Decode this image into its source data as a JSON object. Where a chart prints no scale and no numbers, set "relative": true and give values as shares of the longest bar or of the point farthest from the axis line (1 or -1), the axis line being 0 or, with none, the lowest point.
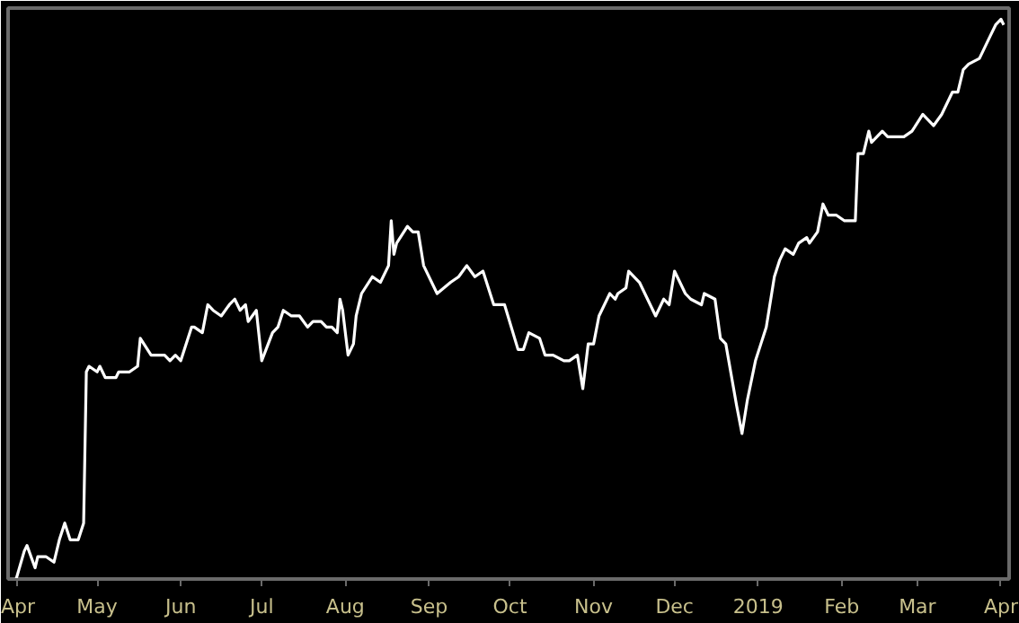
{
  "chart_data": {
    "type": "line",
    "relative": true,
    "grid": false,
    "xlim": [
      "2018-03-29",
      "2019-04-04"
    ],
    "xticks": [
      {
        "value": "2018-04-01",
        "label": "Apr"
      },
      {
        "value": "2018-05-01",
        "label": "May"
      },
      {
        "value": "2018-06-01",
        "label": "Jun"
      },
      {
        "value": "2018-07-01",
        "label": "Jul"
      },
      {
        "value": "2018-08-01",
        "label": "Aug"
      },
      {
        "value": "2018-09-01",
        "label": "Sep"
      },
      {
        "value": "2018-10-01",
        "label": "Oct"
      },
      {
        "value": "2018-11-01",
        "label": "Nov"
      },
      {
        "value": "2018-12-01",
        "label": "Dec"
      },
      {
        "value": "2019-01-01",
        "label": "2019"
      },
      {
        "value": "2019-02-01",
        "label": "Feb"
      },
      {
        "value": "2019-03-01",
        "label": "Mar"
      },
      {
        "value": "2019-04-01",
        "label": "Apr"
      }
    ],
    "x": [
      "2018-04-01",
      "2018-04-04",
      "2018-04-05",
      "2018-04-08",
      "2018-04-09",
      "2018-04-12",
      "2018-04-15",
      "2018-04-17",
      "2018-04-19",
      "2018-04-21",
      "2018-04-24",
      "2018-04-26",
      "2018-04-27",
      "2018-04-28",
      "2018-05-01",
      "2018-05-02",
      "2018-05-04",
      "2018-05-08",
      "2018-05-09",
      "2018-05-13",
      "2018-05-16",
      "2018-05-17",
      "2018-05-21",
      "2018-05-24",
      "2018-05-26",
      "2018-05-28",
      "2018-05-30",
      "2018-06-01",
      "2018-06-05",
      "2018-06-06",
      "2018-06-09",
      "2018-06-11",
      "2018-06-13",
      "2018-06-16",
      "2018-06-19",
      "2018-06-21",
      "2018-06-23",
      "2018-06-25",
      "2018-06-26",
      "2018-06-29",
      "2018-07-01",
      "2018-07-05",
      "2018-07-07",
      "2018-07-09",
      "2018-07-12",
      "2018-07-15",
      "2018-07-18",
      "2018-07-20",
      "2018-07-23",
      "2018-07-25",
      "2018-07-27",
      "2018-07-29",
      "2018-07-30",
      "2018-07-31",
      "2018-08-02",
      "2018-08-04",
      "2018-08-05",
      "2018-08-07",
      "2018-08-11",
      "2018-08-14",
      "2018-08-17",
      "2018-08-18",
      "2018-08-19",
      "2018-08-20",
      "2018-08-24",
      "2018-08-26",
      "2018-08-28",
      "2018-08-30",
      "2018-09-04",
      "2018-09-09",
      "2018-09-12",
      "2018-09-15",
      "2018-09-18",
      "2018-09-21",
      "2018-09-25",
      "2018-09-29",
      "2018-10-04",
      "2018-10-06",
      "2018-10-08",
      "2018-10-12",
      "2018-10-14",
      "2018-10-17",
      "2018-10-21",
      "2018-10-23",
      "2018-10-26",
      "2018-10-28",
      "2018-10-30",
      "2018-11-01",
      "2018-11-03",
      "2018-11-07",
      "2018-11-09",
      "2018-11-10",
      "2018-11-13",
      "2018-11-14",
      "2018-11-18",
      "2018-11-21",
      "2018-11-24",
      "2018-11-27",
      "2018-11-29",
      "2018-12-01",
      "2018-12-05",
      "2018-12-07",
      "2018-12-11",
      "2018-12-12",
      "2018-12-16",
      "2018-12-18",
      "2018-12-20",
      "2018-12-24",
      "2018-12-26",
      "2018-12-28",
      "2018-12-31",
      "2019-01-02",
      "2019-01-04",
      "2019-01-07",
      "2019-01-09",
      "2019-01-11",
      "2019-01-14",
      "2019-01-16",
      "2019-01-19",
      "2019-01-20",
      "2019-01-23",
      "2019-01-25",
      "2019-01-27",
      "2019-01-30",
      "2019-02-02",
      "2019-02-06",
      "2019-02-07",
      "2019-02-09",
      "2019-02-11",
      "2019-02-12",
      "2019-02-14",
      "2019-02-16",
      "2019-02-18",
      "2019-02-22",
      "2019-02-24",
      "2019-02-27",
      "2019-03-03",
      "2019-03-05",
      "2019-03-07",
      "2019-03-10",
      "2019-03-14",
      "2019-03-16",
      "2019-03-18",
      "2019-03-20",
      "2019-03-24",
      "2019-03-26",
      "2019-03-28",
      "2019-03-30",
      "2019-04-01",
      "2019-04-02"
    ],
    "series": [
      {
        "color": "#ffffff",
        "values": [
          0,
          0.05,
          0.06,
          0.02,
          0.04,
          0.04,
          0.03,
          0.07,
          0.1,
          0.07,
          0.07,
          0.1,
          0.37,
          0.38,
          0.37,
          0.38,
          0.36,
          0.36,
          0.37,
          0.37,
          0.38,
          0.43,
          0.4,
          0.4,
          0.4,
          0.39,
          0.4,
          0.39,
          0.45,
          0.45,
          0.44,
          0.49,
          0.48,
          0.47,
          0.49,
          0.5,
          0.48,
          0.49,
          0.46,
          0.48,
          0.39,
          0.44,
          0.45,
          0.48,
          0.47,
          0.47,
          0.45,
          0.46,
          0.46,
          0.45,
          0.45,
          0.44,
          0.5,
          0.48,
          0.4,
          0.42,
          0.47,
          0.51,
          0.54,
          0.53,
          0.56,
          0.64,
          0.58,
          0.6,
          0.63,
          0.62,
          0.62,
          0.56,
          0.51,
          0.53,
          0.54,
          0.56,
          0.54,
          0.55,
          0.49,
          0.49,
          0.41,
          0.41,
          0.44,
          0.43,
          0.4,
          0.4,
          0.39,
          0.39,
          0.4,
          0.34,
          0.42,
          0.42,
          0.47,
          0.51,
          0.5,
          0.51,
          0.52,
          0.55,
          0.53,
          0.5,
          0.47,
          0.5,
          0.49,
          0.55,
          0.51,
          0.5,
          0.49,
          0.51,
          0.5,
          0.43,
          0.42,
          0.31,
          0.26,
          0.32,
          0.39,
          0.42,
          0.45,
          0.54,
          0.57,
          0.59,
          0.58,
          0.6,
          0.61,
          0.6,
          0.62,
          0.67,
          0.65,
          0.65,
          0.64,
          0.64,
          0.76,
          0.76,
          0.8,
          0.78,
          0.79,
          0.8,
          0.79,
          0.79,
          0.79,
          0.8,
          0.83,
          0.82,
          0.81,
          0.83,
          0.87,
          0.87,
          0.91,
          0.92,
          0.93,
          0.95,
          0.97,
          0.99,
          1.0,
          0.99
        ]
      }
    ]
  }
}
